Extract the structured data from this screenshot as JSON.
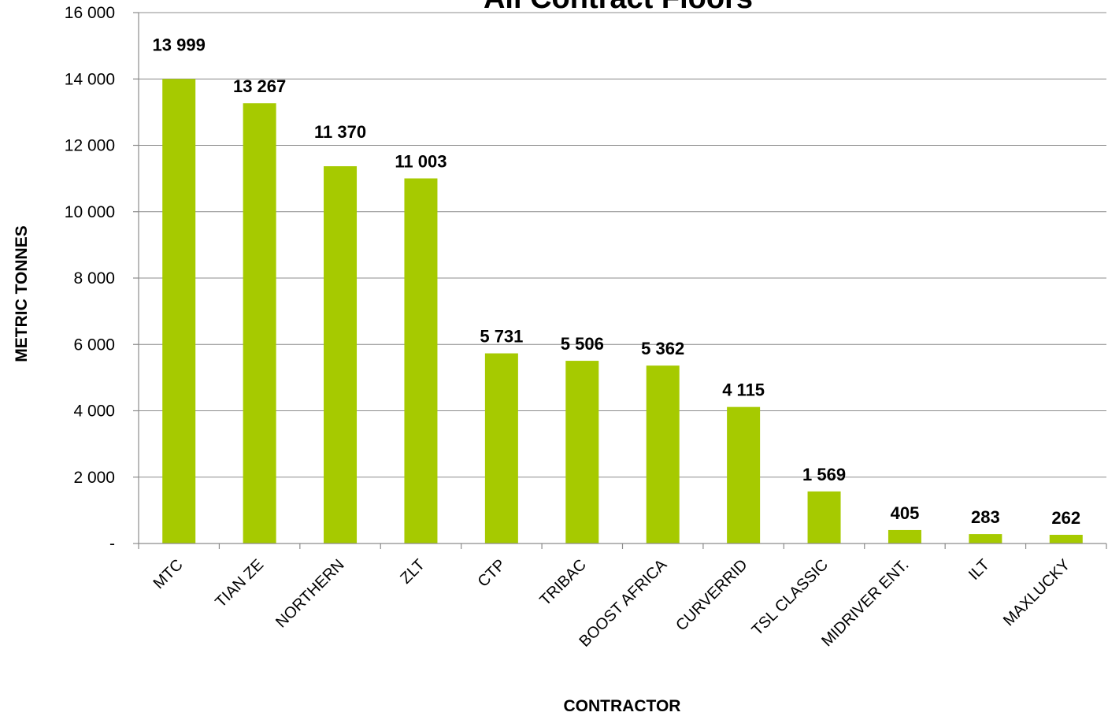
{
  "chart_data": {
    "type": "bar",
    "title": "All Contract Floors",
    "xlabel": "CONTRACTOR",
    "ylabel": "METRIC TONNES",
    "categories": [
      "MTC",
      "TIAN ZE",
      "NORTHERN",
      "ZLT",
      "CTP",
      "TRIBAC",
      "BOOST AFRICA",
      "CURVERRID",
      "TSL CLASSIC",
      "MIDRIVER ENT.",
      "ILT",
      "MAXLUCKY"
    ],
    "values": [
      13999,
      13267,
      11370,
      11003,
      5731,
      5506,
      5362,
      4115,
      1569,
      405,
      283,
      262
    ],
    "data_labels": [
      "13 999",
      "13 267",
      "11 370",
      "11 003",
      "5 731",
      "5 506",
      "5 362",
      "4 115",
      "1 569",
      "405",
      "283",
      "262"
    ],
    "ylim": [
      0,
      16000
    ],
    "yticks": [
      0,
      2000,
      4000,
      6000,
      8000,
      10000,
      12000,
      14000,
      16000
    ],
    "ytick_labels": [
      "-",
      "2 000",
      "4 000",
      "6 000",
      "8 000",
      "10 000",
      "12 000",
      "14 000",
      "16 000"
    ],
    "grid": true,
    "legend": "none",
    "bar_color": "#a6ca00"
  }
}
